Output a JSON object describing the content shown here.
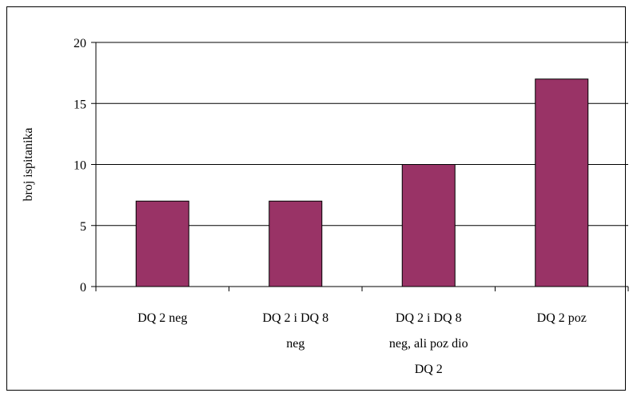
{
  "chart_data": {
    "type": "bar",
    "title": "",
    "xlabel": "",
    "ylabel": "broj ispitanika",
    "ylim": [
      0,
      20
    ],
    "yticks": [
      0,
      5,
      10,
      15,
      20
    ],
    "grid": true,
    "categories": [
      [
        "DQ 2 neg"
      ],
      [
        "DQ 2 i DQ 8",
        "neg"
      ],
      [
        "DQ 2 i DQ 8",
        "neg, ali poz dio",
        "DQ 2"
      ],
      [
        "DQ 2 poz"
      ]
    ],
    "values": [
      7,
      7,
      10,
      17
    ],
    "colors": {
      "bar": "#993366",
      "grid": "#000000"
    }
  }
}
